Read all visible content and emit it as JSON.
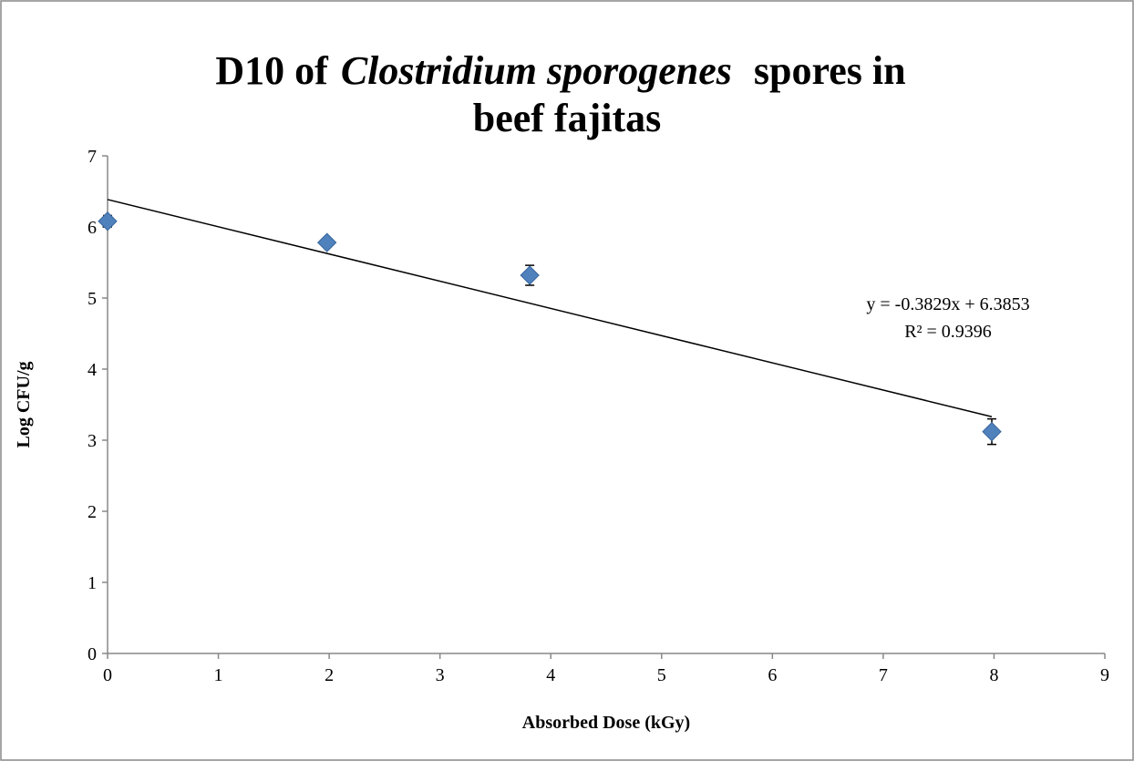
{
  "chart_data": {
    "type": "scatter",
    "title": [
      "D10 of",
      "Clostridium sporogenes",
      "spores in",
      "beef fajitas"
    ],
    "xlabel": "Absorbed Dose (kGy)",
    "ylabel": "Log CFU/g",
    "series": [
      {
        "color": "#4f81bd",
        "x": [
          0,
          1.98,
          3.81,
          7.98
        ],
        "values": [
          6.08,
          5.78,
          5.32,
          3.12
        ],
        "errors": [
          0.08,
          0.03,
          0.14,
          0.18
        ]
      }
    ],
    "trendline": {
      "slope": -0.3829,
      "intercept": 6.3853,
      "x": [
        0,
        7.98
      ],
      "color": "#000000"
    },
    "annotations": [
      "y = -0.3829x + 6.3853",
      "R² = 0.9396"
    ],
    "xlim": [
      0,
      9
    ],
    "xticks": [
      0,
      1,
      2,
      3,
      4,
      5,
      6,
      7,
      8,
      9
    ],
    "ylim": [
      0,
      7
    ],
    "yticks": [
      0,
      1,
      2,
      3,
      4,
      5,
      6,
      7
    ],
    "grid": false
  }
}
